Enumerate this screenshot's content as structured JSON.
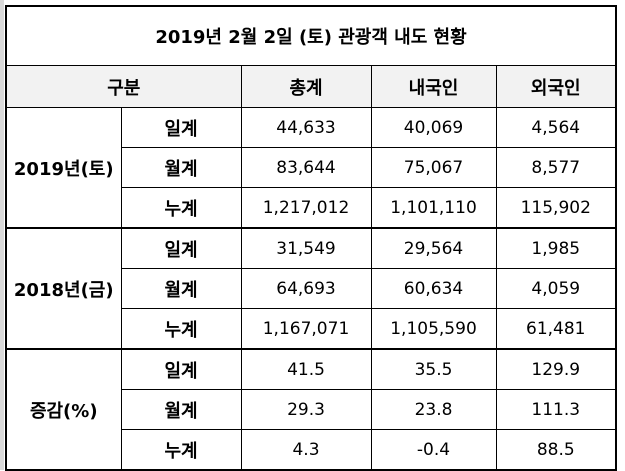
{
  "title": "2019년 2월 2일 (토) 관광객 내도 현황",
  "header": [
    "구분",
    "총계",
    "내국인",
    "외국인"
  ],
  "groups": [
    {
      "label": "2019년(토)",
      "rows": [
        {
          "label": "일계",
          "values": [
            "44,633",
            "40,069",
            "4,564"
          ]
        },
        {
          "label": "월계",
          "values": [
            "83,644",
            "75,067",
            "8,577"
          ]
        },
        {
          "label": "누계",
          "values": [
            "1,217,012",
            "1,101,110",
            "115,902"
          ]
        }
      ]
    },
    {
      "label": "2018년(금)",
      "rows": [
        {
          "label": "일계",
          "values": [
            "31,549",
            "29,564",
            "1,985"
          ]
        },
        {
          "label": "월계",
          "values": [
            "64,693",
            "60,634",
            "4,059"
          ]
        },
        {
          "label": "누계",
          "values": [
            "1,167,071",
            "1,105,590",
            "61,481"
          ]
        }
      ]
    },
    {
      "label": "증감(%)",
      "rows": [
        {
          "label": "일계",
          "values": [
            "41.5",
            "35.5",
            "129.9"
          ]
        },
        {
          "label": "월계",
          "values": [
            "29.3",
            "23.8",
            "111.3"
          ]
        },
        {
          "label": "누계",
          "values": [
            "4.3",
            "-0.4",
            "88.5"
          ]
        }
      ]
    }
  ]
}
